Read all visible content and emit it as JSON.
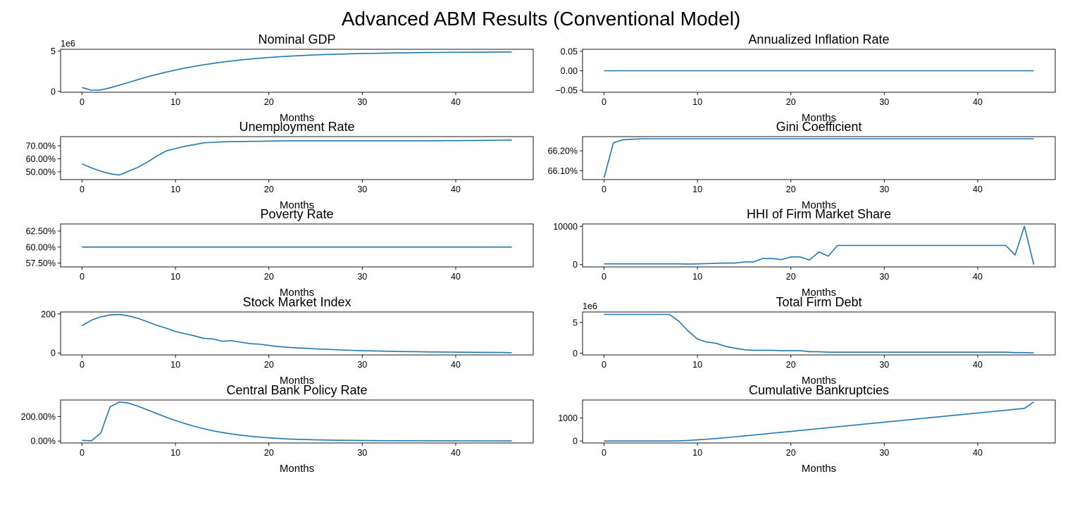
{
  "figure": {
    "suptitle": "Advanced ABM Results (Conventional Model)"
  },
  "colors": {
    "line": "#1f77b4",
    "axes": "#000000"
  },
  "chart_data": [
    {
      "type": "line",
      "title": "Nominal GDP",
      "xlabel": "Months",
      "ylabel": "",
      "xlim": [
        -2.3,
        48.3
      ],
      "ylim": [
        -0.1,
        5.2
      ],
      "xticks": [
        0,
        10,
        20,
        30,
        40
      ],
      "xtick_labels": [
        "0",
        "10",
        "20",
        "30",
        "40"
      ],
      "yticks": [
        0,
        5
      ],
      "ytick_labels": [
        "0",
        "5"
      ],
      "multiplier": "1e6",
      "series": [
        {
          "values": [
            0.48,
            0.15,
            0.18,
            0.45,
            0.78,
            1.12,
            1.47,
            1.8,
            2.1,
            2.38,
            2.64,
            2.88,
            3.09,
            3.29,
            3.46,
            3.62,
            3.76,
            3.89,
            4.0,
            4.1,
            4.19,
            4.27,
            4.34,
            4.4,
            4.46,
            4.51,
            4.55,
            4.59,
            4.62,
            4.65,
            4.68,
            4.7,
            4.72,
            4.74,
            4.76,
            4.77,
            4.79,
            4.8,
            4.81,
            4.82,
            4.83,
            4.84,
            4.85,
            4.85,
            4.86,
            4.87,
            4.87
          ]
        }
      ]
    },
    {
      "type": "line",
      "title": "Annualized Inflation Rate",
      "xlabel": "Months",
      "ylabel": "",
      "xlim": [
        -2.3,
        48.3
      ],
      "ylim": [
        -0.055,
        0.055
      ],
      "xticks": [
        0,
        10,
        20,
        30,
        40
      ],
      "xtick_labels": [
        "0",
        "10",
        "20",
        "30",
        "40"
      ],
      "yticks": [
        -0.05,
        0.0,
        0.05
      ],
      "ytick_labels": [
        "−0.05",
        "0.00",
        "0.05"
      ],
      "series": [
        {
          "values": [
            0,
            0,
            0,
            0,
            0,
            0,
            0,
            0,
            0,
            0,
            0,
            0,
            0,
            0,
            0,
            0,
            0,
            0,
            0,
            0,
            0,
            0,
            0,
            0,
            0,
            0,
            0,
            0,
            0,
            0,
            0,
            0,
            0,
            0,
            0,
            0,
            0,
            0,
            0,
            0,
            0,
            0,
            0,
            0,
            0,
            0,
            0
          ]
        }
      ]
    },
    {
      "type": "line",
      "title": "Unemployment Rate",
      "xlabel": "Months",
      "ylabel": "",
      "xlim": [
        -2.3,
        48.3
      ],
      "ylim": [
        44.0,
        77.0
      ],
      "xticks": [
        0,
        10,
        20,
        30,
        40
      ],
      "xtick_labels": [
        "0",
        "10",
        "20",
        "30",
        "40"
      ],
      "yticks": [
        50,
        60,
        70
      ],
      "ytick_labels": [
        "50.00%",
        "60.00%",
        "70.00%"
      ],
      "series": [
        {
          "values": [
            56.0,
            53.0,
            50.5,
            48.5,
            47.5,
            50.5,
            53.5,
            57.5,
            62.0,
            66.0,
            67.8,
            69.6,
            70.8,
            72.2,
            72.6,
            73.0,
            73.2,
            73.2,
            73.4,
            73.4,
            73.6,
            73.7,
            73.8,
            73.8,
            73.8,
            73.8,
            73.8,
            73.8,
            73.8,
            73.8,
            73.8,
            73.8,
            73.8,
            73.8,
            73.8,
            73.8,
            73.8,
            73.8,
            73.8,
            73.9,
            73.9,
            74.0,
            74.0,
            74.1,
            74.2,
            74.3,
            74.4
          ]
        }
      ]
    },
    {
      "type": "line",
      "title": "Gini Coefficient",
      "xlabel": "Months",
      "ylabel": "",
      "xlim": [
        -2.3,
        48.3
      ],
      "ylim": [
        66.056,
        66.271
      ],
      "xticks": [
        0,
        10,
        20,
        30,
        40
      ],
      "xtick_labels": [
        "0",
        "10",
        "20",
        "30",
        "40"
      ],
      "yticks": [
        66.1,
        66.2
      ],
      "ytick_labels": [
        "66.10%",
        "66.20%"
      ],
      "series": [
        {
          "values": [
            66.065,
            66.24,
            66.255,
            66.258,
            66.26,
            66.26,
            66.26,
            66.26,
            66.26,
            66.26,
            66.26,
            66.26,
            66.26,
            66.26,
            66.26,
            66.26,
            66.26,
            66.26,
            66.26,
            66.26,
            66.26,
            66.26,
            66.26,
            66.26,
            66.26,
            66.26,
            66.26,
            66.26,
            66.26,
            66.26,
            66.26,
            66.26,
            66.26,
            66.26,
            66.26,
            66.26,
            66.26,
            66.26,
            66.26,
            66.26,
            66.26,
            66.26,
            66.26,
            66.26,
            66.26,
            66.26,
            66.26
          ]
        }
      ]
    },
    {
      "type": "line",
      "title": "Poverty Rate",
      "xlabel": "Months",
      "ylabel": "",
      "xlim": [
        -2.3,
        48.3
      ],
      "ylim": [
        56.9,
        63.6
      ],
      "xticks": [
        0,
        10,
        20,
        30,
        40
      ],
      "xtick_labels": [
        "0",
        "10",
        "20",
        "30",
        "40"
      ],
      "yticks": [
        57.5,
        60.0,
        62.5
      ],
      "ytick_labels": [
        "57.50%",
        "60.00%",
        "62.50%"
      ],
      "series": [
        {
          "values": [
            60,
            60,
            60,
            60,
            60,
            60,
            60,
            60,
            60,
            60,
            60,
            60,
            60,
            60,
            60,
            60,
            60,
            60,
            60,
            60,
            60,
            60,
            60,
            60,
            60,
            60,
            60,
            60,
            60,
            60,
            60,
            60,
            60,
            60,
            60,
            60,
            60,
            60,
            60,
            60,
            60,
            60,
            60,
            60,
            60,
            60,
            60
          ]
        }
      ]
    },
    {
      "type": "line",
      "title": "HHI of Firm Market Share",
      "xlabel": "Months",
      "ylabel": "",
      "xlim": [
        -2.3,
        48.3
      ],
      "ylim": [
        -600,
        10600
      ],
      "xticks": [
        0,
        10,
        20,
        30,
        40
      ],
      "xtick_labels": [
        "0",
        "10",
        "20",
        "30",
        "40"
      ],
      "yticks": [
        0,
        10000
      ],
      "ytick_labels": [
        "0",
        "10000"
      ],
      "series": [
        {
          "values": [
            200,
            200,
            200,
            200,
            200,
            200,
            200,
            200,
            200,
            150,
            200,
            250,
            350,
            400,
            400,
            700,
            700,
            1600,
            1600,
            1300,
            2000,
            2000,
            1200,
            3300,
            2200,
            5000,
            5000,
            5000,
            5000,
            5000,
            5000,
            5000,
            5000,
            5000,
            5000,
            5000,
            5000,
            5000,
            5000,
            5000,
            5000,
            5000,
            5000,
            5000,
            2500,
            10000,
            0
          ]
        }
      ]
    },
    {
      "type": "line",
      "title": "Stock Market Index",
      "xlabel": "Months",
      "ylabel": "",
      "xlim": [
        -2.3,
        48.3
      ],
      "ylim": [
        -10,
        210
      ],
      "xticks": [
        0,
        10,
        20,
        30,
        40
      ],
      "xtick_labels": [
        "0",
        "10",
        "20",
        "30",
        "40"
      ],
      "yticks": [
        0,
        200
      ],
      "ytick_labels": [
        "0",
        "200"
      ],
      "series": [
        {
          "values": [
            140,
            168,
            185,
            195,
            197,
            190,
            177,
            160,
            142,
            127,
            110,
            99,
            88,
            75,
            72,
            60,
            63,
            55,
            48,
            45,
            39,
            33,
            29,
            26,
            24,
            21,
            19,
            17,
            15,
            13,
            12,
            10.8,
            9.7,
            8.7,
            7.8,
            7,
            6.3,
            5.7,
            5.1,
            4.6,
            4.1,
            3.7,
            3.3,
            3,
            2.7,
            2.4,
            1.5
          ]
        }
      ]
    },
    {
      "type": "line",
      "title": "Total Firm Debt",
      "xlabel": "Months",
      "ylabel": "",
      "xlim": [
        -2.3,
        48.3
      ],
      "ylim": [
        -0.3,
        6.7
      ],
      "xticks": [
        0,
        10,
        20,
        30,
        40
      ],
      "xtick_labels": [
        "0",
        "10",
        "20",
        "30",
        "40"
      ],
      "yticks": [
        0,
        5
      ],
      "ytick_labels": [
        "0",
        "5"
      ],
      "multiplier": "1e6",
      "series": [
        {
          "values": [
            6.3,
            6.3,
            6.3,
            6.3,
            6.3,
            6.3,
            6.3,
            6.3,
            5.2,
            3.6,
            2.3,
            1.8,
            1.6,
            1.1,
            0.8,
            0.55,
            0.45,
            0.45,
            0.45,
            0.4,
            0.4,
            0.4,
            0.22,
            0.22,
            0.15,
            0.15,
            0.15,
            0.15,
            0.15,
            0.15,
            0.15,
            0.15,
            0.15,
            0.15,
            0.15,
            0.15,
            0.15,
            0.15,
            0.15,
            0.15,
            0.15,
            0.15,
            0.15,
            0.15,
            0.08,
            0.08,
            0.02
          ]
        }
      ]
    },
    {
      "type": "line",
      "title": "Central Bank Policy Rate",
      "xlabel": "Months",
      "ylabel": "",
      "xlim": [
        -2.3,
        48.3
      ],
      "ylim": [
        -16,
        336
      ],
      "xticks": [
        0,
        10,
        20,
        30,
        40
      ],
      "xtick_labels": [
        "0",
        "10",
        "20",
        "30",
        "40"
      ],
      "yticks": [
        0,
        200
      ],
      "ytick_labels": [
        "0.00%",
        "200.00%"
      ],
      "series": [
        {
          "values": [
            5,
            2,
            65,
            280,
            320,
            310,
            285,
            255,
            225,
            195,
            168,
            143,
            121,
            101,
            84,
            70,
            58,
            48,
            39,
            32,
            26,
            21,
            17,
            14,
            11.5,
            9.5,
            8,
            6.8,
            5.8,
            5,
            4.3,
            3.7,
            3.2,
            2.8,
            2.5,
            2.2,
            2,
            1.8,
            1.6,
            1.5,
            1.4,
            1.3,
            1.2,
            1.1,
            1,
            1,
            1
          ]
        }
      ]
    },
    {
      "type": "line",
      "title": "Cumulative Bankruptcies",
      "xlabel": "Months",
      "ylabel": "",
      "xlim": [
        -2.3,
        48.3
      ],
      "ylim": [
        -85,
        1785
      ],
      "xticks": [
        0,
        10,
        20,
        30,
        40
      ],
      "xtick_labels": [
        "0",
        "10",
        "20",
        "30",
        "40"
      ],
      "yticks": [
        0,
        1000
      ],
      "ytick_labels": [
        "0",
        "1000"
      ],
      "series": [
        {
          "values": [
            0,
            0,
            0,
            0,
            0,
            0,
            0,
            0,
            8,
            25,
            50,
            80,
            110,
            145,
            180,
            220,
            260,
            300,
            340,
            380,
            420,
            460,
            500,
            540,
            580,
            620,
            660,
            700,
            740,
            780,
            820,
            860,
            900,
            940,
            980,
            1020,
            1060,
            1100,
            1140,
            1180,
            1220,
            1260,
            1300,
            1340,
            1380,
            1420,
            1700
          ]
        }
      ]
    }
  ]
}
